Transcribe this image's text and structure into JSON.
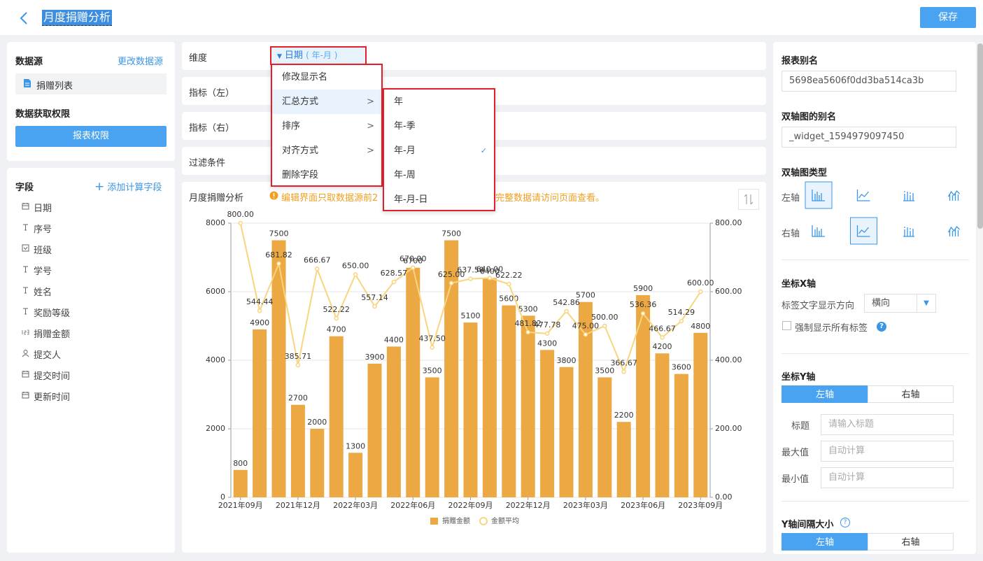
{
  "header": {
    "title": "月度捐赠分析",
    "save": "保存"
  },
  "sidebar": {
    "datasource_label": "数据源",
    "change_datasource": "更改数据源",
    "datasource": "捐赠列表",
    "permission_label": "数据获取权限",
    "permission_button": "报表权限",
    "fields_label": "字段",
    "add_field": "添加计算字段",
    "fields": [
      {
        "icon": "date",
        "name": "日期"
      },
      {
        "icon": "text",
        "name": "序号"
      },
      {
        "icon": "select",
        "name": "班级"
      },
      {
        "icon": "text",
        "name": "学号"
      },
      {
        "icon": "text",
        "name": "姓名"
      },
      {
        "icon": "text",
        "name": "奖励等级"
      },
      {
        "icon": "number",
        "name": "捐赠金额"
      },
      {
        "icon": "user",
        "name": "提交人"
      },
      {
        "icon": "date",
        "name": "提交时间"
      },
      {
        "icon": "date",
        "name": "更新时间"
      }
    ]
  },
  "editor": {
    "dimension_label": "维度",
    "dimension_tag": "日期",
    "dimension_tag_sub": "( 年-月 )",
    "left_metric_label": "指标（左）",
    "right_metric_label": "指标（右）",
    "filter_label": "过滤条件",
    "menu": [
      "修改显示名",
      "汇总方式",
      "排序",
      "对齐方式",
      "删除字段"
    ],
    "submenu": [
      "年",
      "年-季",
      "年-月",
      "年-周",
      "年-月-日"
    ],
    "submenu_checked": 2,
    "panel_title": "月度捐赠分析",
    "warning_start": "编辑界面只取数据源前2",
    "warning_end": "完整数据请访问页面查看。"
  },
  "settings": {
    "alias_label": "报表别名",
    "alias": "5698ea5606f0dd3ba514ca3b",
    "widget_alias_label": "双轴图的别名",
    "widget_alias": "_widget_1594979097450",
    "chart_type_label": "双轴图类型",
    "left_axis": "左轴",
    "right_axis": "右轴",
    "x_axis_label": "坐标X轴",
    "label_direction_label": "标签文字显示方向",
    "label_direction": "横向",
    "force_labels": "强制显示所有标签",
    "y_axis_label": "坐标Y轴",
    "y_tabs": [
      "左轴",
      "右轴"
    ],
    "y_title_label": "标题",
    "y_title_placeholder": "请输入标题",
    "y_max_label": "最大值",
    "y_max_placeholder": "自动计算",
    "y_min_label": "最小值",
    "y_min_placeholder": "自动计算",
    "y_interval_label": "Y轴间隔大小",
    "interval_tabs": [
      "左轴",
      "右轴"
    ]
  },
  "chart_data": {
    "type": "bar",
    "categories": [
      "2021年09月",
      null,
      null,
      "2021年12月",
      null,
      null,
      "2022年03月",
      null,
      null,
      "2022年06月",
      null,
      null,
      "2022年09月",
      null,
      null,
      "2022年12月",
      null,
      null,
      "2023年03月",
      null,
      null,
      "2023年06月",
      null,
      null,
      "2023年09月"
    ],
    "series": [
      {
        "name": "捐赠金额",
        "type": "bar",
        "color": "#eba843",
        "values": [
          800,
          4900,
          7500,
          2700,
          2000,
          4700,
          1300,
          3900,
          4400,
          6700,
          3500,
          7500,
          5100,
          6400,
          5600,
          5300,
          4300,
          3800,
          5700,
          3500,
          2200,
          5900,
          4200,
          3600,
          4800
        ]
      },
      {
        "name": "金额平均",
        "type": "line",
        "axis": "y2",
        "color": "#f8d57e",
        "values": [
          800,
          544.44,
          681.82,
          385.71,
          666.67,
          522.22,
          650,
          557.14,
          628.57,
          670,
          437.5,
          625,
          637.5,
          640,
          622.22,
          481.82,
          477.78,
          542.86,
          475,
          500,
          366.67,
          536.36,
          466.67,
          514.29,
          600
        ],
        "value_labels": [
          "800.00",
          "544.44",
          "681.82",
          "385.71",
          "666.67",
          "522.22",
          "650.00",
          "557.14",
          "628.57",
          "670.00",
          "437.50",
          "625.00",
          "637.50",
          "640.00",
          "622.22",
          "481.82",
          "477.78",
          "542.86",
          "475.00",
          "500.00",
          "366.67",
          "536.36",
          "466.67",
          "514.29",
          "600.00"
        ]
      }
    ],
    "ylim": [
      0,
      8000
    ],
    "yticks": [
      0,
      2000,
      4000,
      6000,
      8000
    ],
    "y2lim": [
      0,
      800
    ],
    "y2ticks": [
      {
        "value": 0,
        "label": "0.00"
      },
      {
        "value": 200,
        "label": "200.00"
      },
      {
        "value": 400,
        "label": "400.00"
      },
      {
        "value": 600,
        "label": "600.00"
      },
      {
        "value": 800,
        "label": "800.00"
      }
    ],
    "grid": true,
    "legend": "bottom"
  }
}
